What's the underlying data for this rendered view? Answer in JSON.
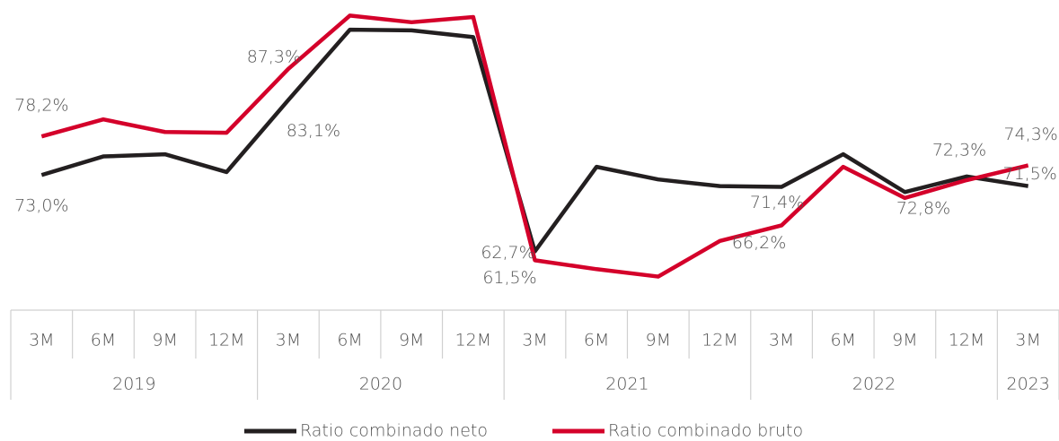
{
  "chart_data": {
    "type": "line",
    "categories": [
      "3M",
      "6M",
      "9M",
      "12M",
      "3M",
      "6M",
      "9M",
      "12M",
      "3M",
      "6M",
      "9M",
      "12M",
      "3M",
      "6M",
      "9M",
      "12M",
      "3M"
    ],
    "years": [
      "2019",
      "2019",
      "2019",
      "2019",
      "2020",
      "2020",
      "2020",
      "2020",
      "2021",
      "2021",
      "2021",
      "2021",
      "2022",
      "2022",
      "2022",
      "2022",
      "2023"
    ],
    "ylim": [
      55.5,
      96.6
    ],
    "series": [
      {
        "name": "Ratio combinado neto",
        "color": "#231f20",
        "values": [
          73.0,
          75.5,
          75.8,
          73.4,
          83.1,
          92.6,
          92.5,
          91.6,
          62.7,
          74.1,
          72.4,
          71.5,
          71.4,
          75.8,
          70.7,
          72.8,
          71.5
        ],
        "value_labels": [
          "73,0%",
          null,
          null,
          null,
          "83,1%",
          null,
          null,
          null,
          "62,7%",
          null,
          null,
          null,
          "71,4%",
          null,
          null,
          "72,8%",
          "71,5%"
        ]
      },
      {
        "name": "Ratio combinado bruto",
        "color": "#d4002a",
        "values": [
          78.2,
          80.5,
          78.8,
          78.7,
          87.3,
          94.5,
          93.6,
          94.3,
          61.5,
          60.3,
          59.3,
          64.1,
          66.2,
          74.1,
          69.9,
          72.3,
          74.3
        ],
        "value_labels": [
          "78,2%",
          null,
          null,
          null,
          "87,3%",
          null,
          null,
          null,
          "61,5%",
          null,
          null,
          null,
          "66,2%",
          null,
          null,
          "72,3%",
          "74,3%"
        ]
      }
    ],
    "legend": "bottom"
  }
}
